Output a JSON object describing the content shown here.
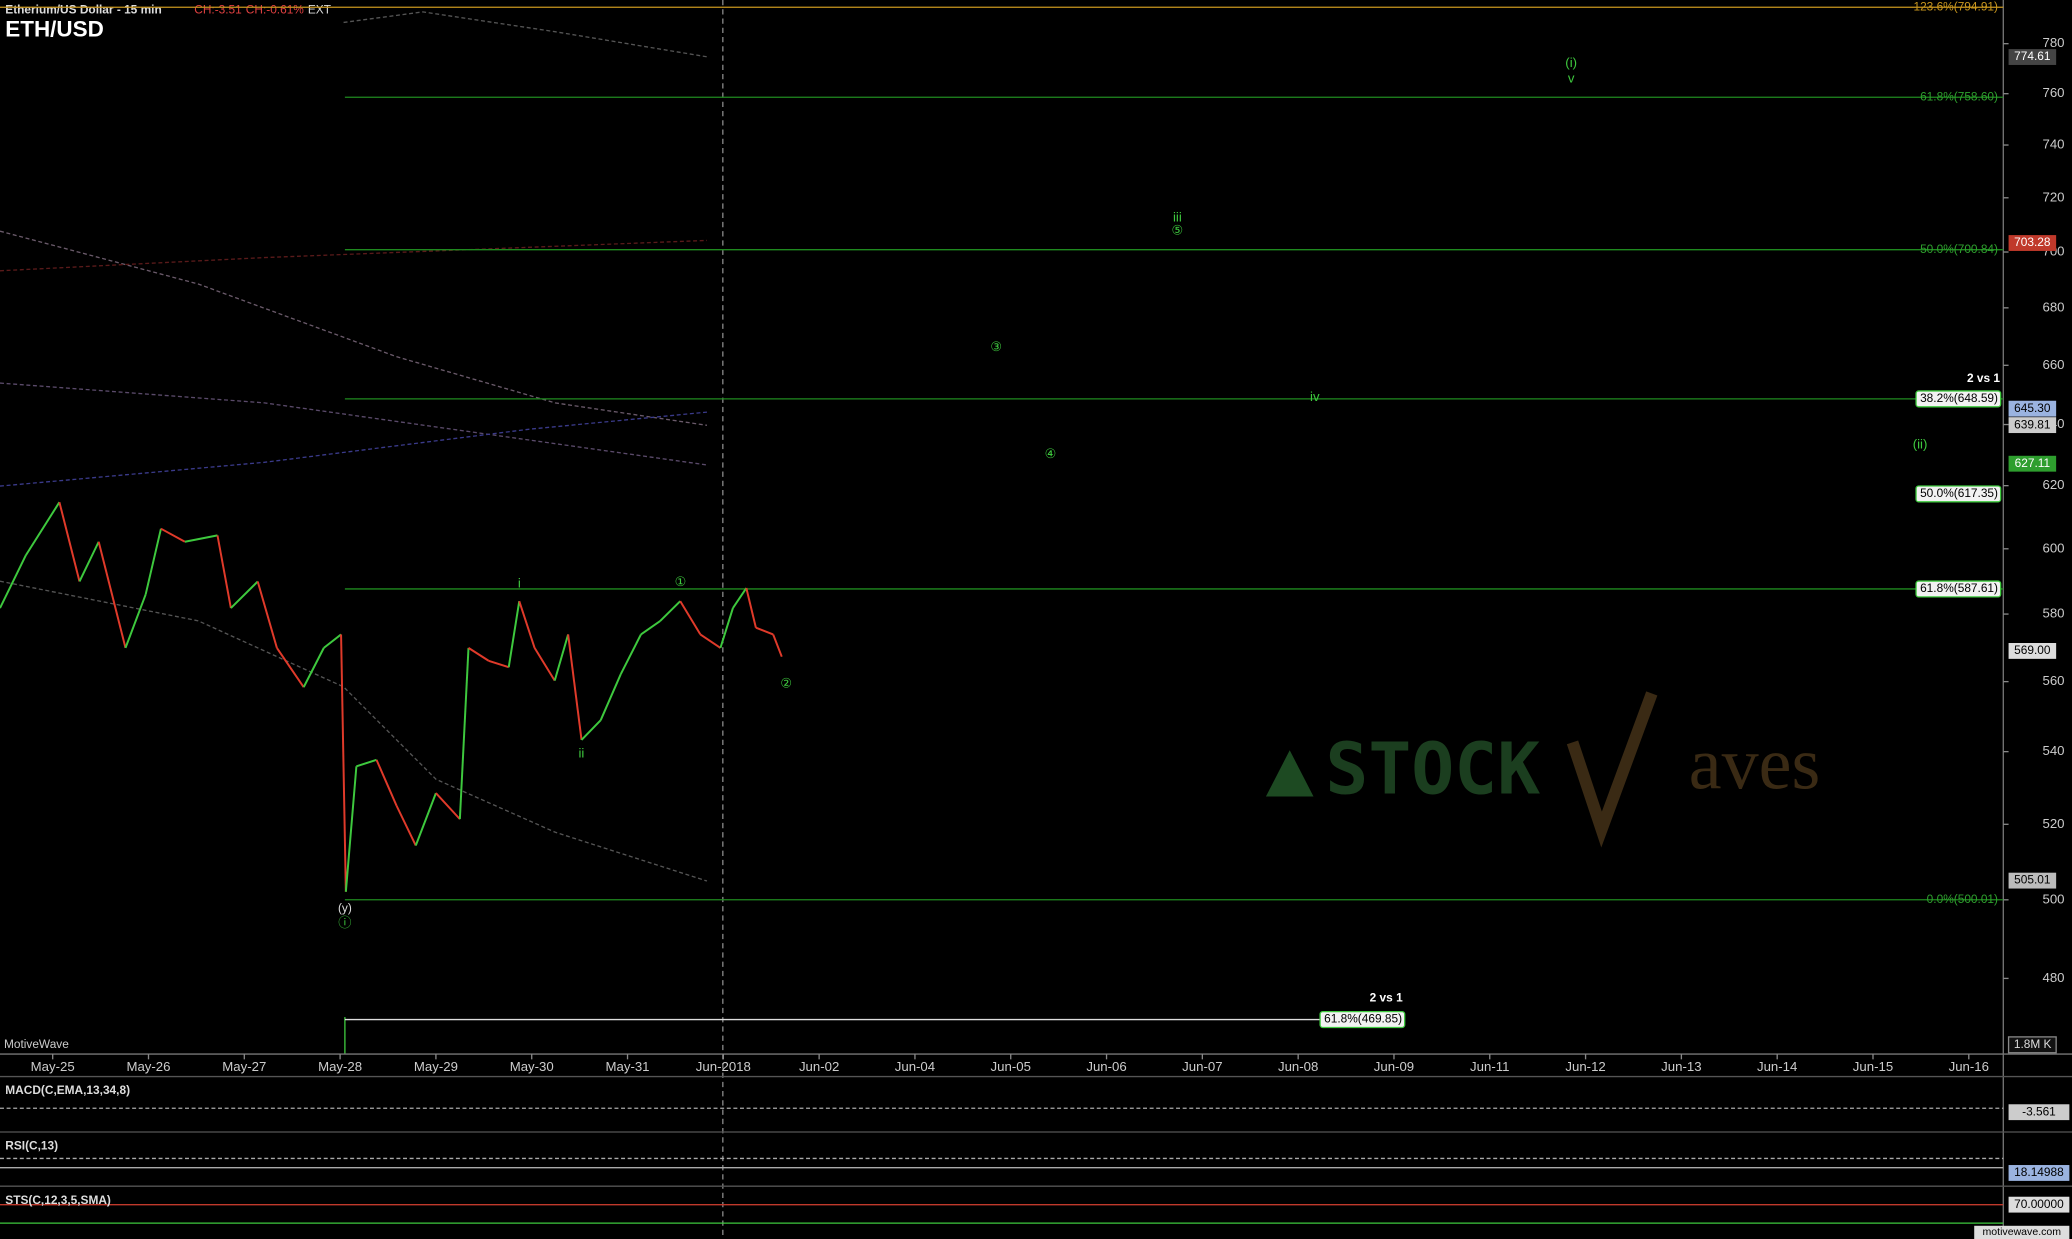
{
  "chart_data": {
    "type": "line",
    "header": "Etherium/US Dollar - 15 min",
    "change": "CH:-3.51",
    "change_pct": "CH:-0.61%",
    "session": "EXT",
    "title": "ETH/USD",
    "source": "MotiveWave",
    "volume_scale": "1.8M K",
    "footer": "motivewave.com",
    "yscale": "log",
    "ylim": [
      461.5,
      797.9
    ],
    "yticks": [
      480,
      500,
      520,
      540,
      560,
      580,
      600,
      620,
      640,
      660,
      680,
      700,
      720,
      740,
      760,
      780
    ],
    "xlim": [
      -0.55,
      20.36
    ],
    "xticks": [
      {
        "value": 0,
        "label": "May-25"
      },
      {
        "value": 1,
        "label": "May-26"
      },
      {
        "value": 2,
        "label": "May-27"
      },
      {
        "value": 3,
        "label": "May-28"
      },
      {
        "value": 4,
        "label": "May-29"
      },
      {
        "value": 5,
        "label": "May-30"
      },
      {
        "value": 6,
        "label": "May-31"
      },
      {
        "value": 7,
        "label": "Jun-2018"
      },
      {
        "value": 8,
        "label": "Jun-02"
      },
      {
        "value": 9,
        "label": "Jun-04"
      },
      {
        "value": 10,
        "label": "Jun-05"
      },
      {
        "value": 11,
        "label": "Jun-06"
      },
      {
        "value": 12,
        "label": "Jun-07"
      },
      {
        "value": 13,
        "label": "Jun-08"
      },
      {
        "value": 14,
        "label": "Jun-09"
      },
      {
        "value": 15,
        "label": "Jun-11"
      },
      {
        "value": 16,
        "label": "Jun-12"
      },
      {
        "value": 17,
        "label": "Jun-13"
      },
      {
        "value": 18,
        "label": "Jun-14"
      },
      {
        "value": 19,
        "label": "Jun-15"
      },
      {
        "value": 20,
        "label": "Jun-16"
      }
    ],
    "series": [
      {
        "name": "ETH/USD",
        "up_color": "#3ec93e",
        "down_color": "#e03a2a",
        "x": [
          -0.55,
          -0.28,
          0.07,
          0.28,
          0.48,
          0.76,
          0.97,
          1.13,
          1.38,
          1.72,
          1.86,
          2.14,
          2.34,
          2.62,
          2.83,
          3.01,
          3.06,
          3.17,
          3.38,
          3.59,
          3.79,
          4.0,
          4.25,
          4.34,
          4.55,
          4.76,
          4.87,
          5.03,
          5.24,
          5.38,
          5.52,
          5.72,
          5.93,
          6.14,
          6.34,
          6.55,
          6.76,
          6.97,
          7.1,
          7.24,
          7.34,
          7.52,
          7.61
        ],
        "values": [
          581.8,
          598.0,
          614.7,
          589.9,
          602.2,
          569.9,
          585.9,
          606.3,
          602.2,
          604.2,
          581.8,
          589.9,
          569.9,
          558.4,
          569.9,
          573.9,
          502.1,
          535.9,
          537.7,
          525.0,
          514.3,
          528.5,
          521.4,
          569.9,
          566.1,
          564.2,
          583.9,
          569.9,
          560.3,
          573.9,
          543.3,
          548.9,
          562.2,
          573.9,
          577.9,
          583.9,
          573.9,
          569.9,
          581.8,
          587.9,
          575.9,
          573.9,
          567.3
        ]
      }
    ],
    "fib_levels": [
      {
        "value": 794.91,
        "label": "123.6%(794.91)"
      },
      {
        "value": 758.6,
        "label": "61.8%(758.60)"
      },
      {
        "value": 700.84,
        "label": "50.0%(700.84)"
      },
      {
        "value": 648.59,
        "label": "38.2%(648.59)"
      },
      {
        "value": 617.35,
        "label": "50.0%(617.35)"
      },
      {
        "value": 587.61,
        "label": "61.8%(587.61)"
      },
      {
        "value": 500.01,
        "label": "0.0%(500.01)"
      },
      {
        "value": 469.85,
        "label": "61.8%(469.85)"
      }
    ],
    "price_tags": [
      {
        "value": 774.61,
        "label": "774.61"
      },
      {
        "value": 703.28,
        "label": "703.28"
      },
      {
        "value": 645.3,
        "label": "645.30"
      },
      {
        "value": 639.81,
        "label": "639.81"
      },
      {
        "value": 627.11,
        "label": "627.11"
      },
      {
        "value": 569.0,
        "label": "569.00"
      },
      {
        "value": 505.01,
        "label": "505.01"
      }
    ],
    "comparisons": [
      "2 vs 1",
      "2 vs 1"
    ],
    "wave_labels": [
      "(i)",
      "v",
      "iii",
      "⑤",
      "③",
      "④",
      "iv",
      "(ii)",
      "i",
      "①",
      "②",
      "ii",
      "(y)",
      "ⓘ"
    ],
    "indicators": [
      {
        "name": "MACD(C,EMA,13,34,8)",
        "value_label": "-3.561"
      },
      {
        "name": "RSI(C,13)",
        "value_label": "18.14988"
      },
      {
        "name": "STS(C,12,3,5,SMA)",
        "value_label": "70.00000"
      }
    ],
    "watermark": [
      "STOCK",
      "aves"
    ]
  }
}
